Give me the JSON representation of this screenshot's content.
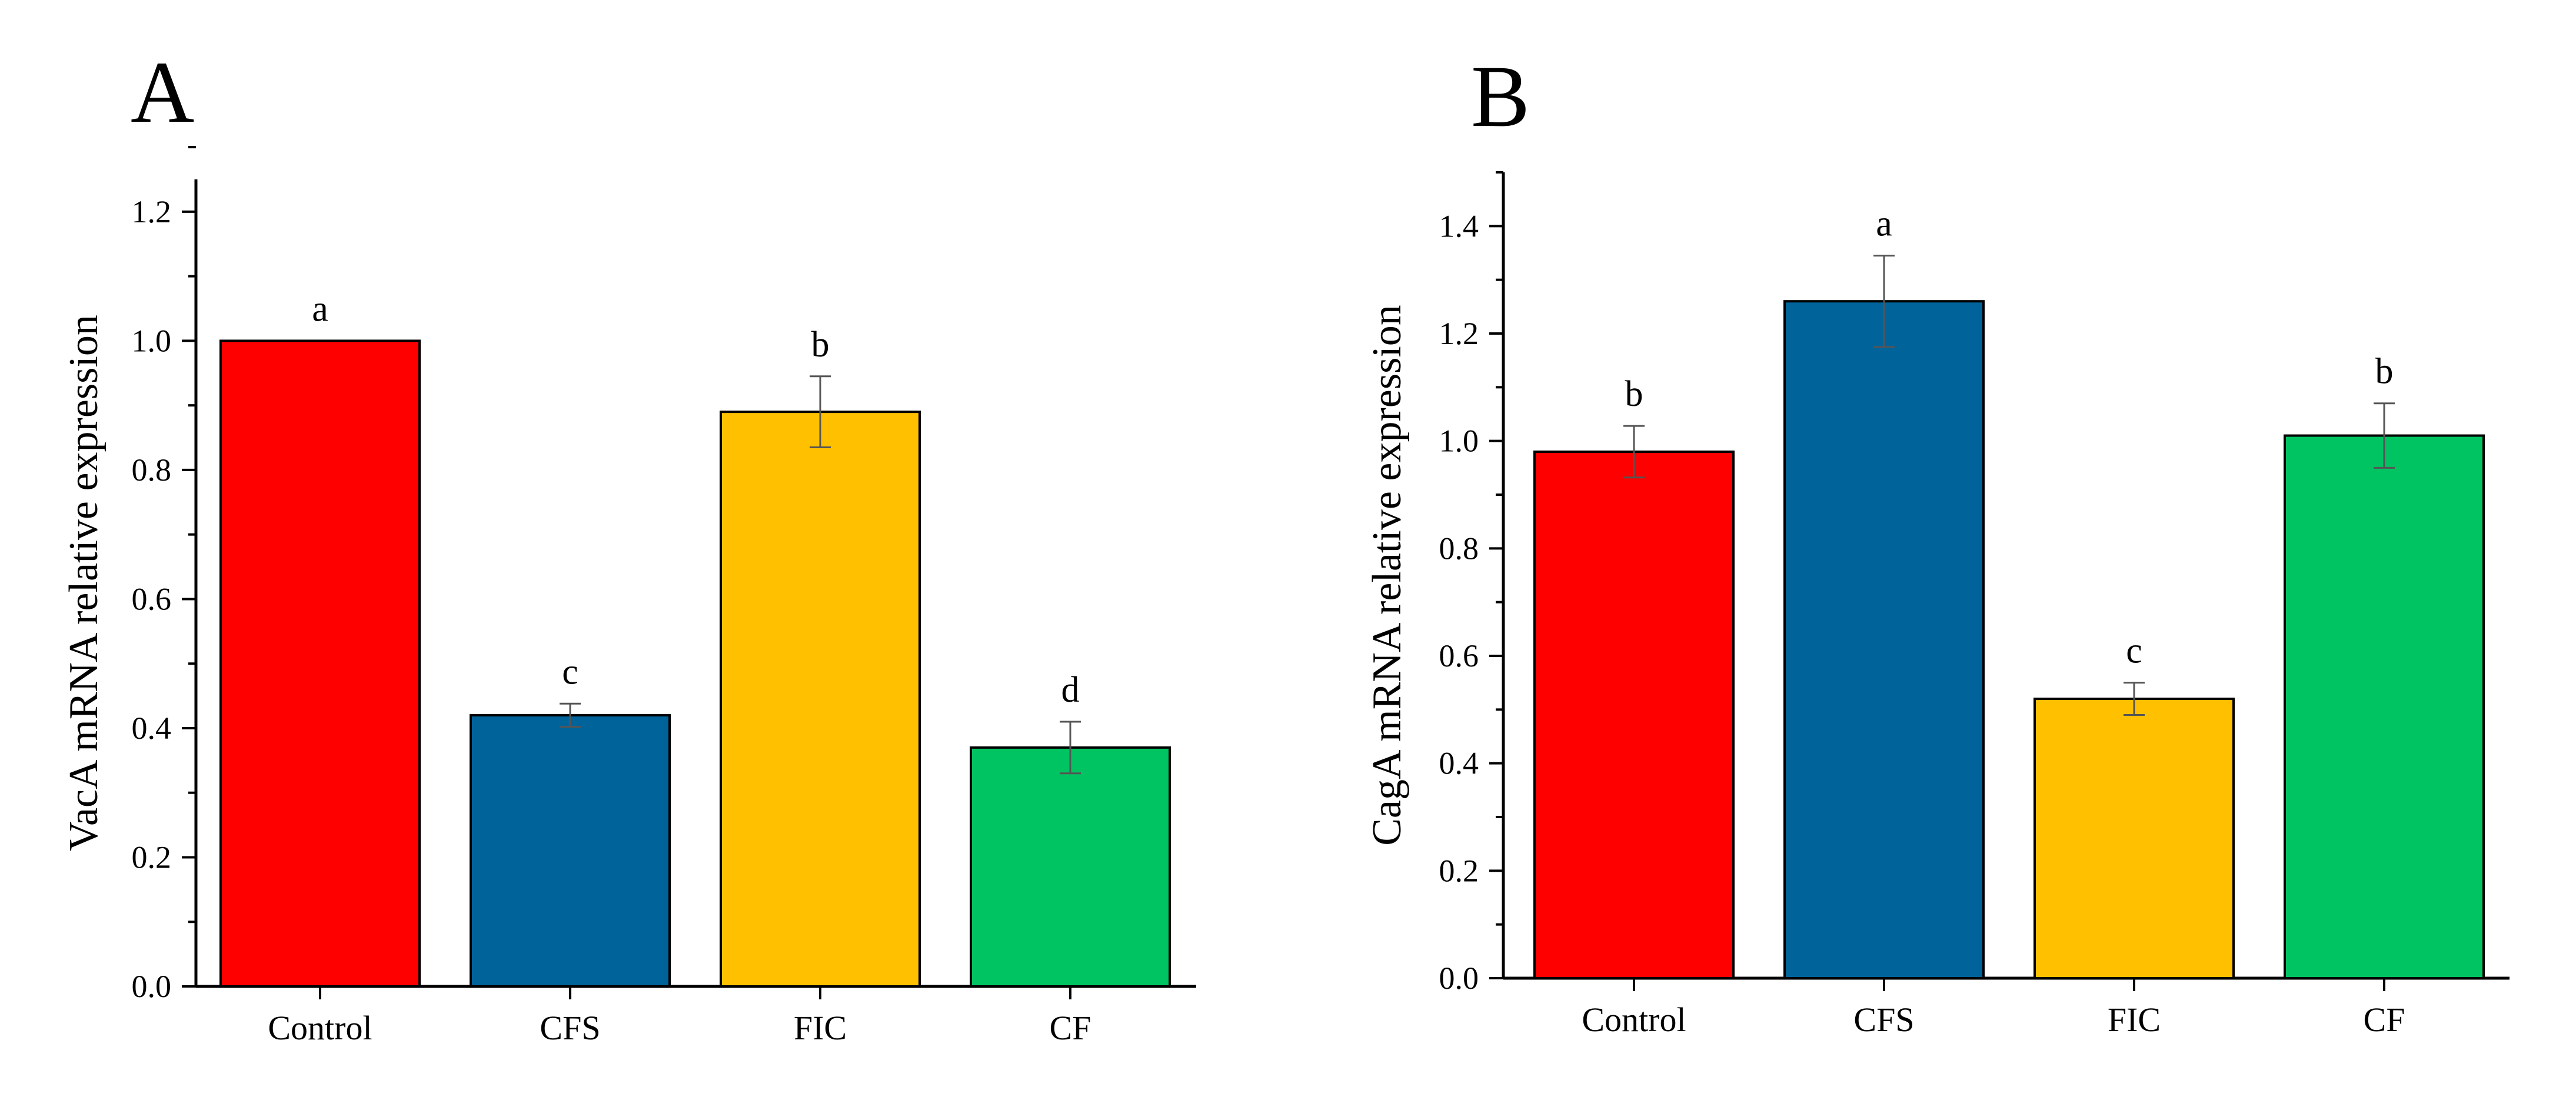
{
  "chart_data": [
    {
      "type": "bar",
      "panel": "A",
      "title": "",
      "xlabel": "",
      "ylabel": "VacA mRNA relative expression",
      "ylim": [
        0,
        1.25
      ],
      "yticks": [
        "0.0",
        "0.2",
        "0.4",
        "0.6",
        "0.8",
        "1.0",
        "1.2"
      ],
      "categories": [
        "Control",
        "CFS",
        "FIC",
        "CF"
      ],
      "values": [
        1.0,
        0.42,
        0.89,
        0.37
      ],
      "errors": [
        0.0,
        0.018,
        0.055,
        0.04
      ],
      "significance": [
        "a",
        "c",
        "b",
        "d"
      ],
      "colors": [
        "#ff0000",
        "#00639a",
        "#ffc000",
        "#00c462"
      ]
    },
    {
      "type": "bar",
      "panel": "B",
      "title": "",
      "xlabel": "",
      "ylabel": "CagA mRNA relative expression",
      "ylim": [
        0,
        1.5
      ],
      "yticks": [
        "0.0",
        "0.2",
        "0.4",
        "0.6",
        "0.8",
        "1.0",
        "1.2",
        "1.4"
      ],
      "categories": [
        "Control",
        "CFS",
        "FIC",
        "CF"
      ],
      "values": [
        0.98,
        1.26,
        0.52,
        1.01
      ],
      "errors": [
        0.048,
        0.085,
        0.03,
        0.06
      ],
      "significance": [
        "b",
        "a",
        "c",
        "b"
      ],
      "colors": [
        "#ff0000",
        "#00639a",
        "#ffc000",
        "#00c462"
      ]
    }
  ]
}
